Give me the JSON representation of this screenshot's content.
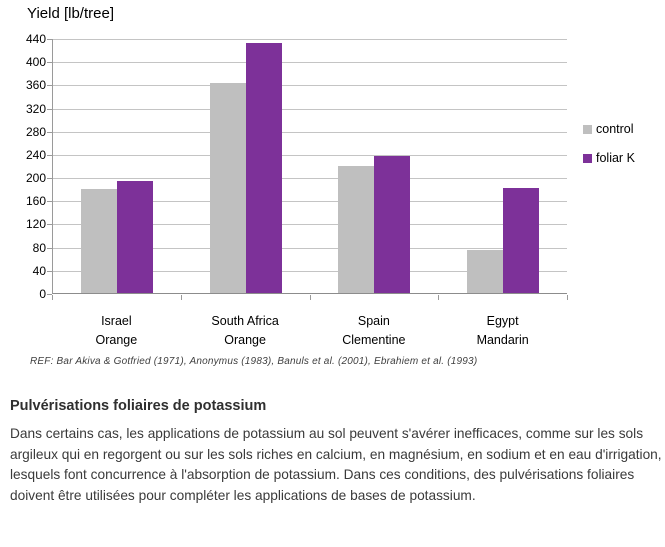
{
  "chart_data": {
    "type": "bar",
    "title": "Yield [lb/tree]",
    "categories": [
      "Israel\nOrange",
      "South Africa\nOrange",
      "Spain\nClementine",
      "Egypt\nMandarin"
    ],
    "series": [
      {
        "name": "control",
        "color": "#bfbfbf",
        "values": [
          180,
          363,
          220,
          75
        ]
      },
      {
        "name": "foliar K",
        "color": "#7d3199",
        "values": [
          193,
          432,
          237,
          182
        ]
      }
    ],
    "xlabel": "",
    "ylabel": "Yield [lb/tree]",
    "ylim": [
      0,
      440
    ],
    "ytick_step": 40,
    "grid": true,
    "legend_position": "right"
  },
  "reference": "REF: Bar Akiva & Gotfried (1971), Anonymus (1983), Banuls et al. (2001), Ebrahiem et al. (1993)",
  "article": {
    "heading": "Pulvérisations foliaires de potassium",
    "body": "Dans certains cas, les applications de potassium au sol peuvent s'avérer inefficaces, comme sur les sols argileux qui en regorgent ou sur les sols riches en calcium, en magnésium, en sodium et en eau d'irrigation, lesquels font concurrence à l'absorption de potassium. Dans ces conditions, des pulvérisations foliaires doivent être utilisées pour compléter les applications de bases de potassium."
  }
}
